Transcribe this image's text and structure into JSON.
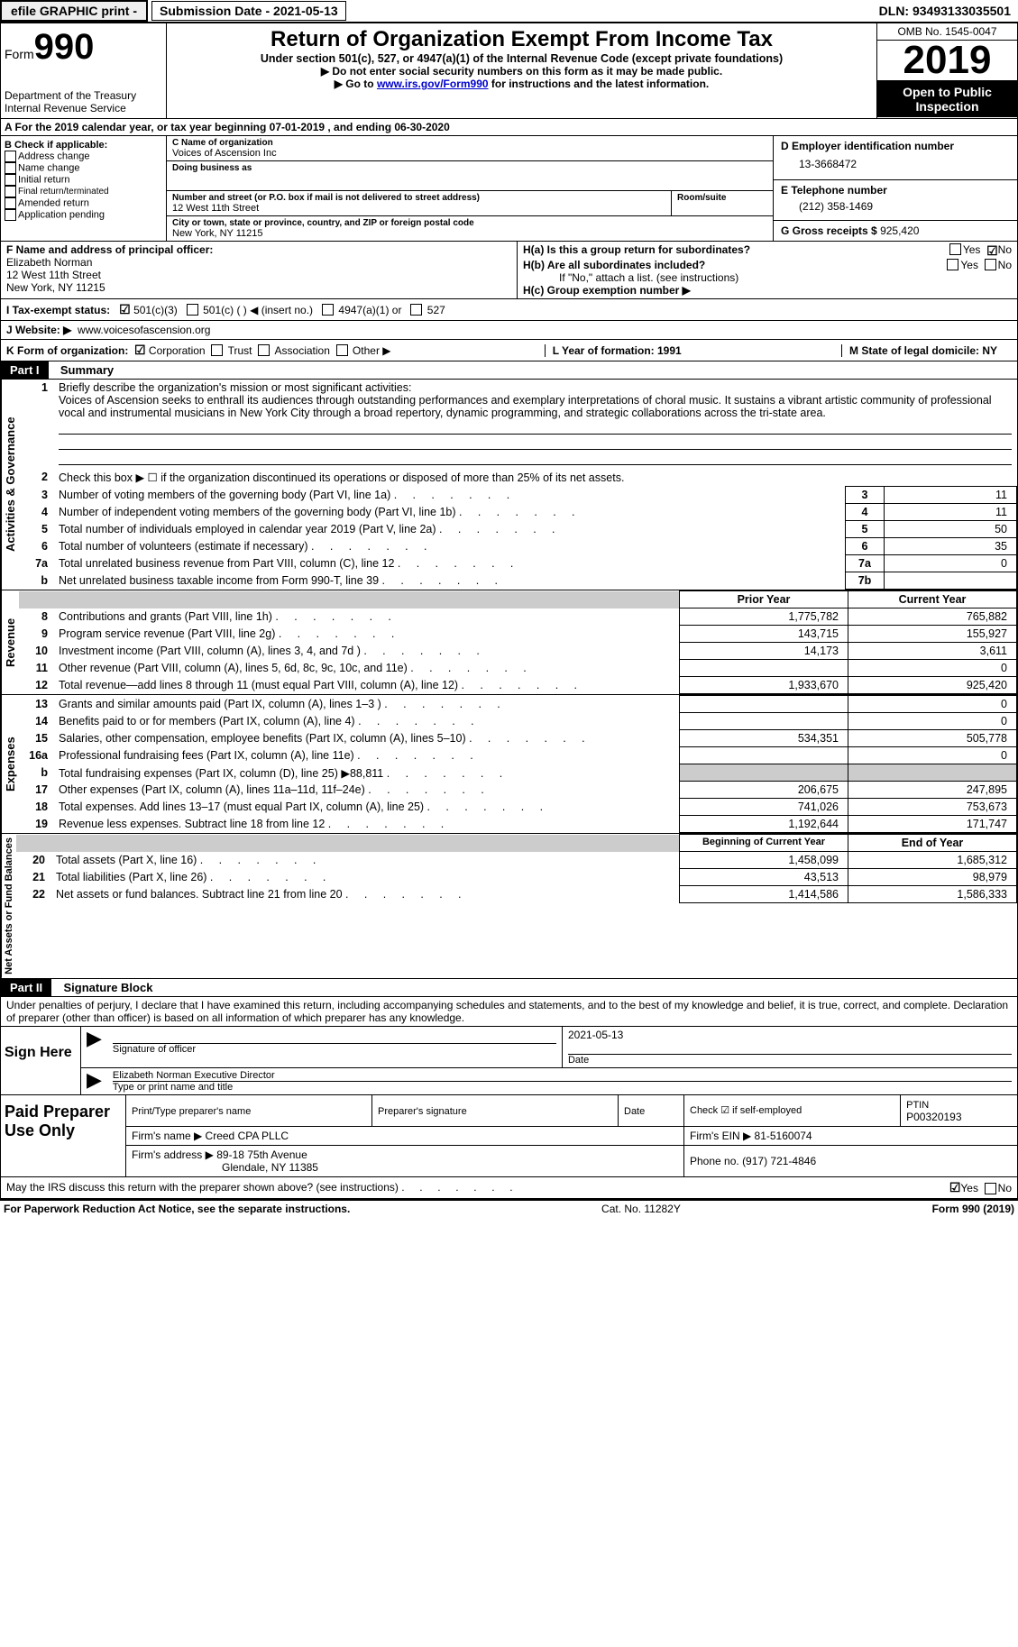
{
  "topbar": {
    "efile": "efile GRAPHIC print -",
    "submission": "Submission Date - 2021-05-13",
    "dln": "DLN: 93493133035501"
  },
  "header": {
    "form_prefix": "Form",
    "form_number": "990",
    "dept": "Department of the Treasury\nInternal Revenue Service",
    "title": "Return of Organization Exempt From Income Tax",
    "subtitle": "Under section 501(c), 527, or 4947(a)(1) of the Internal Revenue Code (except private foundations)",
    "instr1": "▶ Do not enter social security numbers on this form as it may be made public.",
    "instr2_pre": "▶ Go to ",
    "instr2_link": "www.irs.gov/Form990",
    "instr2_post": " for instructions and the latest information.",
    "omb": "OMB No. 1545-0047",
    "year": "2019",
    "inspect": "Open to Public Inspection"
  },
  "row_a": "A For the 2019 calendar year, or tax year beginning 07-01-2019     , and ending 06-30-2020",
  "col_b": {
    "hdr": "B Check if applicable:",
    "opts": [
      "Address change",
      "Name change",
      "Initial return",
      "Final return/terminated",
      "Amended return",
      "Application pending"
    ]
  },
  "cde": {
    "c_label": "C Name of organization",
    "c_val": "Voices of Ascension Inc",
    "dba": "Doing business as",
    "addr_label": "Number and street (or P.O. box if mail is not delivered to street address)",
    "addr_val": "12 West 11th Street",
    "room": "Room/suite",
    "city_label": "City or town, state or province, country, and ZIP or foreign postal code",
    "city_val": "New York, NY  11215",
    "d_label": "D Employer identification number",
    "d_val": "13-3668472",
    "e_label": "E Telephone number",
    "e_val": "(212) 358-1469",
    "g_label": "G Gross receipts $",
    "g_val": "925,420"
  },
  "fh": {
    "f_label": "F Name and address of principal officer:",
    "f_name": "Elizabeth Norman",
    "f_addr1": "12 West 11th Street",
    "f_addr2": "New York, NY  11215",
    "ha": "H(a)  Is this a group return for subordinates?",
    "hb": "H(b)  Are all subordinates included?",
    "hnote": "If \"No,\" attach a list. (see instructions)",
    "hc": "H(c)  Group exemption number ▶",
    "yes": "Yes",
    "no": "No"
  },
  "row_i": {
    "label": "I    Tax-exempt status:",
    "opts": [
      "501(c)(3)",
      "501(c) (  ) ◀ (insert no.)",
      "4947(a)(1) or",
      "527"
    ]
  },
  "row_j": {
    "label": "J   Website: ▶",
    "val": "www.voicesofascension.org"
  },
  "row_k": {
    "label": "K Form of organization:",
    "opts": [
      "Corporation",
      "Trust",
      "Association",
      "Other ▶"
    ],
    "l": "L Year of formation: 1991",
    "m": "M State of legal domicile: NY"
  },
  "part1": {
    "hdr": "Part I",
    "title": "Summary",
    "q1": "Briefly describe the organization's mission or most significant activities:",
    "q1_text": "Voices of Ascension seeks to enthrall its audiences through outstanding performances and exemplary interpretations of choral music. It sustains a vibrant artistic community of professional vocal and instrumental musicians in New York City through a broad repertory, dynamic programming, and strategic collaborations across the tri-state area.",
    "q2": "Check this box ▶ ☐  if the organization discontinued its operations or disposed of more than 25% of its net assets.",
    "rows": [
      {
        "n": "3",
        "t": "Number of voting members of the governing body (Part VI, line 1a)",
        "box": "3",
        "v": "11"
      },
      {
        "n": "4",
        "t": "Number of independent voting members of the governing body (Part VI, line 1b)",
        "box": "4",
        "v": "11"
      },
      {
        "n": "5",
        "t": "Total number of individuals employed in calendar year 2019 (Part V, line 2a)",
        "box": "5",
        "v": "50"
      },
      {
        "n": "6",
        "t": "Total number of volunteers (estimate if necessary)",
        "box": "6",
        "v": "35"
      },
      {
        "n": "7a",
        "t": "Total unrelated business revenue from Part VIII, column (C), line 12",
        "box": "7a",
        "v": "0"
      },
      {
        "n": "b",
        "t": "Net unrelated business taxable income from Form 990-T, line 39",
        "box": "7b",
        "v": ""
      }
    ],
    "prior": "Prior Year",
    "current": "Current Year",
    "revenue": [
      {
        "n": "8",
        "t": "Contributions and grants (Part VIII, line 1h)",
        "p": "1,775,782",
        "c": "765,882"
      },
      {
        "n": "9",
        "t": "Program service revenue (Part VIII, line 2g)",
        "p": "143,715",
        "c": "155,927"
      },
      {
        "n": "10",
        "t": "Investment income (Part VIII, column (A), lines 3, 4, and 7d )",
        "p": "14,173",
        "c": "3,611"
      },
      {
        "n": "11",
        "t": "Other revenue (Part VIII, column (A), lines 5, 6d, 8c, 9c, 10c, and 11e)",
        "p": "",
        "c": "0"
      },
      {
        "n": "12",
        "t": "Total revenue—add lines 8 through 11 (must equal Part VIII, column (A), line 12)",
        "p": "1,933,670",
        "c": "925,420"
      }
    ],
    "expenses": [
      {
        "n": "13",
        "t": "Grants and similar amounts paid (Part IX, column (A), lines 1–3 )",
        "p": "",
        "c": "0"
      },
      {
        "n": "14",
        "t": "Benefits paid to or for members (Part IX, column (A), line 4)",
        "p": "",
        "c": "0"
      },
      {
        "n": "15",
        "t": "Salaries, other compensation, employee benefits (Part IX, column (A), lines 5–10)",
        "p": "534,351",
        "c": "505,778"
      },
      {
        "n": "16a",
        "t": "Professional fundraising fees (Part IX, column (A), line 11e)",
        "p": "",
        "c": "0"
      },
      {
        "n": "b",
        "t": "Total fundraising expenses (Part IX, column (D), line 25) ▶88,811",
        "p": "shade",
        "c": "shade"
      },
      {
        "n": "17",
        "t": "Other expenses (Part IX, column (A), lines 11a–11d, 11f–24e)",
        "p": "206,675",
        "c": "247,895"
      },
      {
        "n": "18",
        "t": "Total expenses. Add lines 13–17 (must equal Part IX, column (A), line 25)",
        "p": "741,026",
        "c": "753,673"
      },
      {
        "n": "19",
        "t": "Revenue less expenses. Subtract line 18 from line 12",
        "p": "1,192,644",
        "c": "171,747"
      }
    ],
    "begin": "Beginning of Current Year",
    "end": "End of Year",
    "netassets": [
      {
        "n": "20",
        "t": "Total assets (Part X, line 16)",
        "p": "1,458,099",
        "c": "1,685,312"
      },
      {
        "n": "21",
        "t": "Total liabilities (Part X, line 26)",
        "p": "43,513",
        "c": "98,979"
      },
      {
        "n": "22",
        "t": "Net assets or fund balances. Subtract line 21 from line 20",
        "p": "1,414,586",
        "c": "1,586,333"
      }
    ],
    "vlabels": {
      "gov": "Activities & Governance",
      "rev": "Revenue",
      "exp": "Expenses",
      "net": "Net Assets or Fund Balances"
    }
  },
  "part2": {
    "hdr": "Part II",
    "title": "Signature Block",
    "decl": "Under penalties of perjury, I declare that I have examined this return, including accompanying schedules and statements, and to the best of my knowledge and belief, it is true, correct, and complete. Declaration of preparer (other than officer) is based on all information of which preparer has any knowledge.",
    "sign_here": "Sign Here",
    "sig_officer": "Signature of officer",
    "date": "Date",
    "sig_date": "2021-05-13",
    "name_title": "Elizabeth Norman  Executive Director",
    "name_title_lbl": "Type or print name and title",
    "paid": "Paid Preparer Use Only",
    "prep_name_lbl": "Print/Type preparer's name",
    "prep_sig_lbl": "Preparer's signature",
    "date_lbl": "Date",
    "check_se": "Check ☑ if self-employed",
    "ptin_lbl": "PTIN",
    "ptin": "P00320193",
    "firm_name_lbl": "Firm's name    ▶",
    "firm_name": "Creed CPA PLLC",
    "firm_ein_lbl": "Firm's EIN ▶",
    "firm_ein": "81-5160074",
    "firm_addr_lbl": "Firm's address ▶",
    "firm_addr": "89-18 75th Avenue",
    "firm_addr2": "Glendale, NY  11385",
    "phone_lbl": "Phone no.",
    "phone": "(917) 721-4846",
    "discuss": "May the IRS discuss this return with the preparer shown above? (see instructions)",
    "yes": "Yes",
    "no": "No"
  },
  "footer": {
    "left": "For Paperwork Reduction Act Notice, see the separate instructions.",
    "mid": "Cat. No. 11282Y",
    "right_pre": "Form ",
    "right_bold": "990",
    "right_post": " (2019)"
  }
}
